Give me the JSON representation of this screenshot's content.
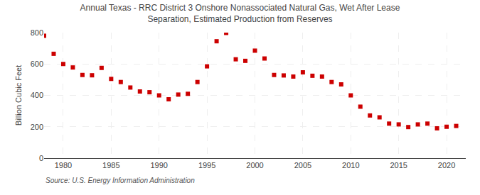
{
  "chart_data": {
    "type": "scatter",
    "title": "Annual Texas - RRC District 3 Onshore Nonassociated Natural Gas, Wet After Lease\nSeparation, Estimated Production from Reserves",
    "ylabel": "Billion Cubic Feet",
    "source": "Source: U.S. Energy Information Administration",
    "color": "#cc0000",
    "marker": "square",
    "grid": true,
    "x": [
      1978,
      1979,
      1980,
      1981,
      1982,
      1983,
      1984,
      1985,
      1986,
      1987,
      1988,
      1989,
      1990,
      1991,
      1992,
      1993,
      1994,
      1995,
      1996,
      1997,
      1998,
      1999,
      2000,
      2001,
      2002,
      2003,
      2004,
      2005,
      2006,
      2007,
      2008,
      2009,
      2010,
      2011,
      2012,
      2013,
      2014,
      2015,
      2016,
      2017,
      2018,
      2019,
      2020,
      2021
    ],
    "values": [
      780,
      665,
      600,
      578,
      530,
      528,
      575,
      505,
      485,
      450,
      425,
      420,
      400,
      375,
      405,
      410,
      485,
      585,
      745,
      798,
      630,
      620,
      685,
      635,
      530,
      527,
      520,
      547,
      525,
      520,
      485,
      470,
      400,
      328,
      272,
      260,
      220,
      215,
      198,
      215,
      220,
      190,
      200,
      205
    ],
    "xlim": [
      1978,
      2022
    ],
    "ylim": [
      0,
      800
    ],
    "yticks": [
      0,
      200,
      400,
      600,
      800
    ],
    "xticks": [
      1980,
      1985,
      1990,
      1995,
      2000,
      2005,
      2010,
      2015,
      2020
    ]
  }
}
